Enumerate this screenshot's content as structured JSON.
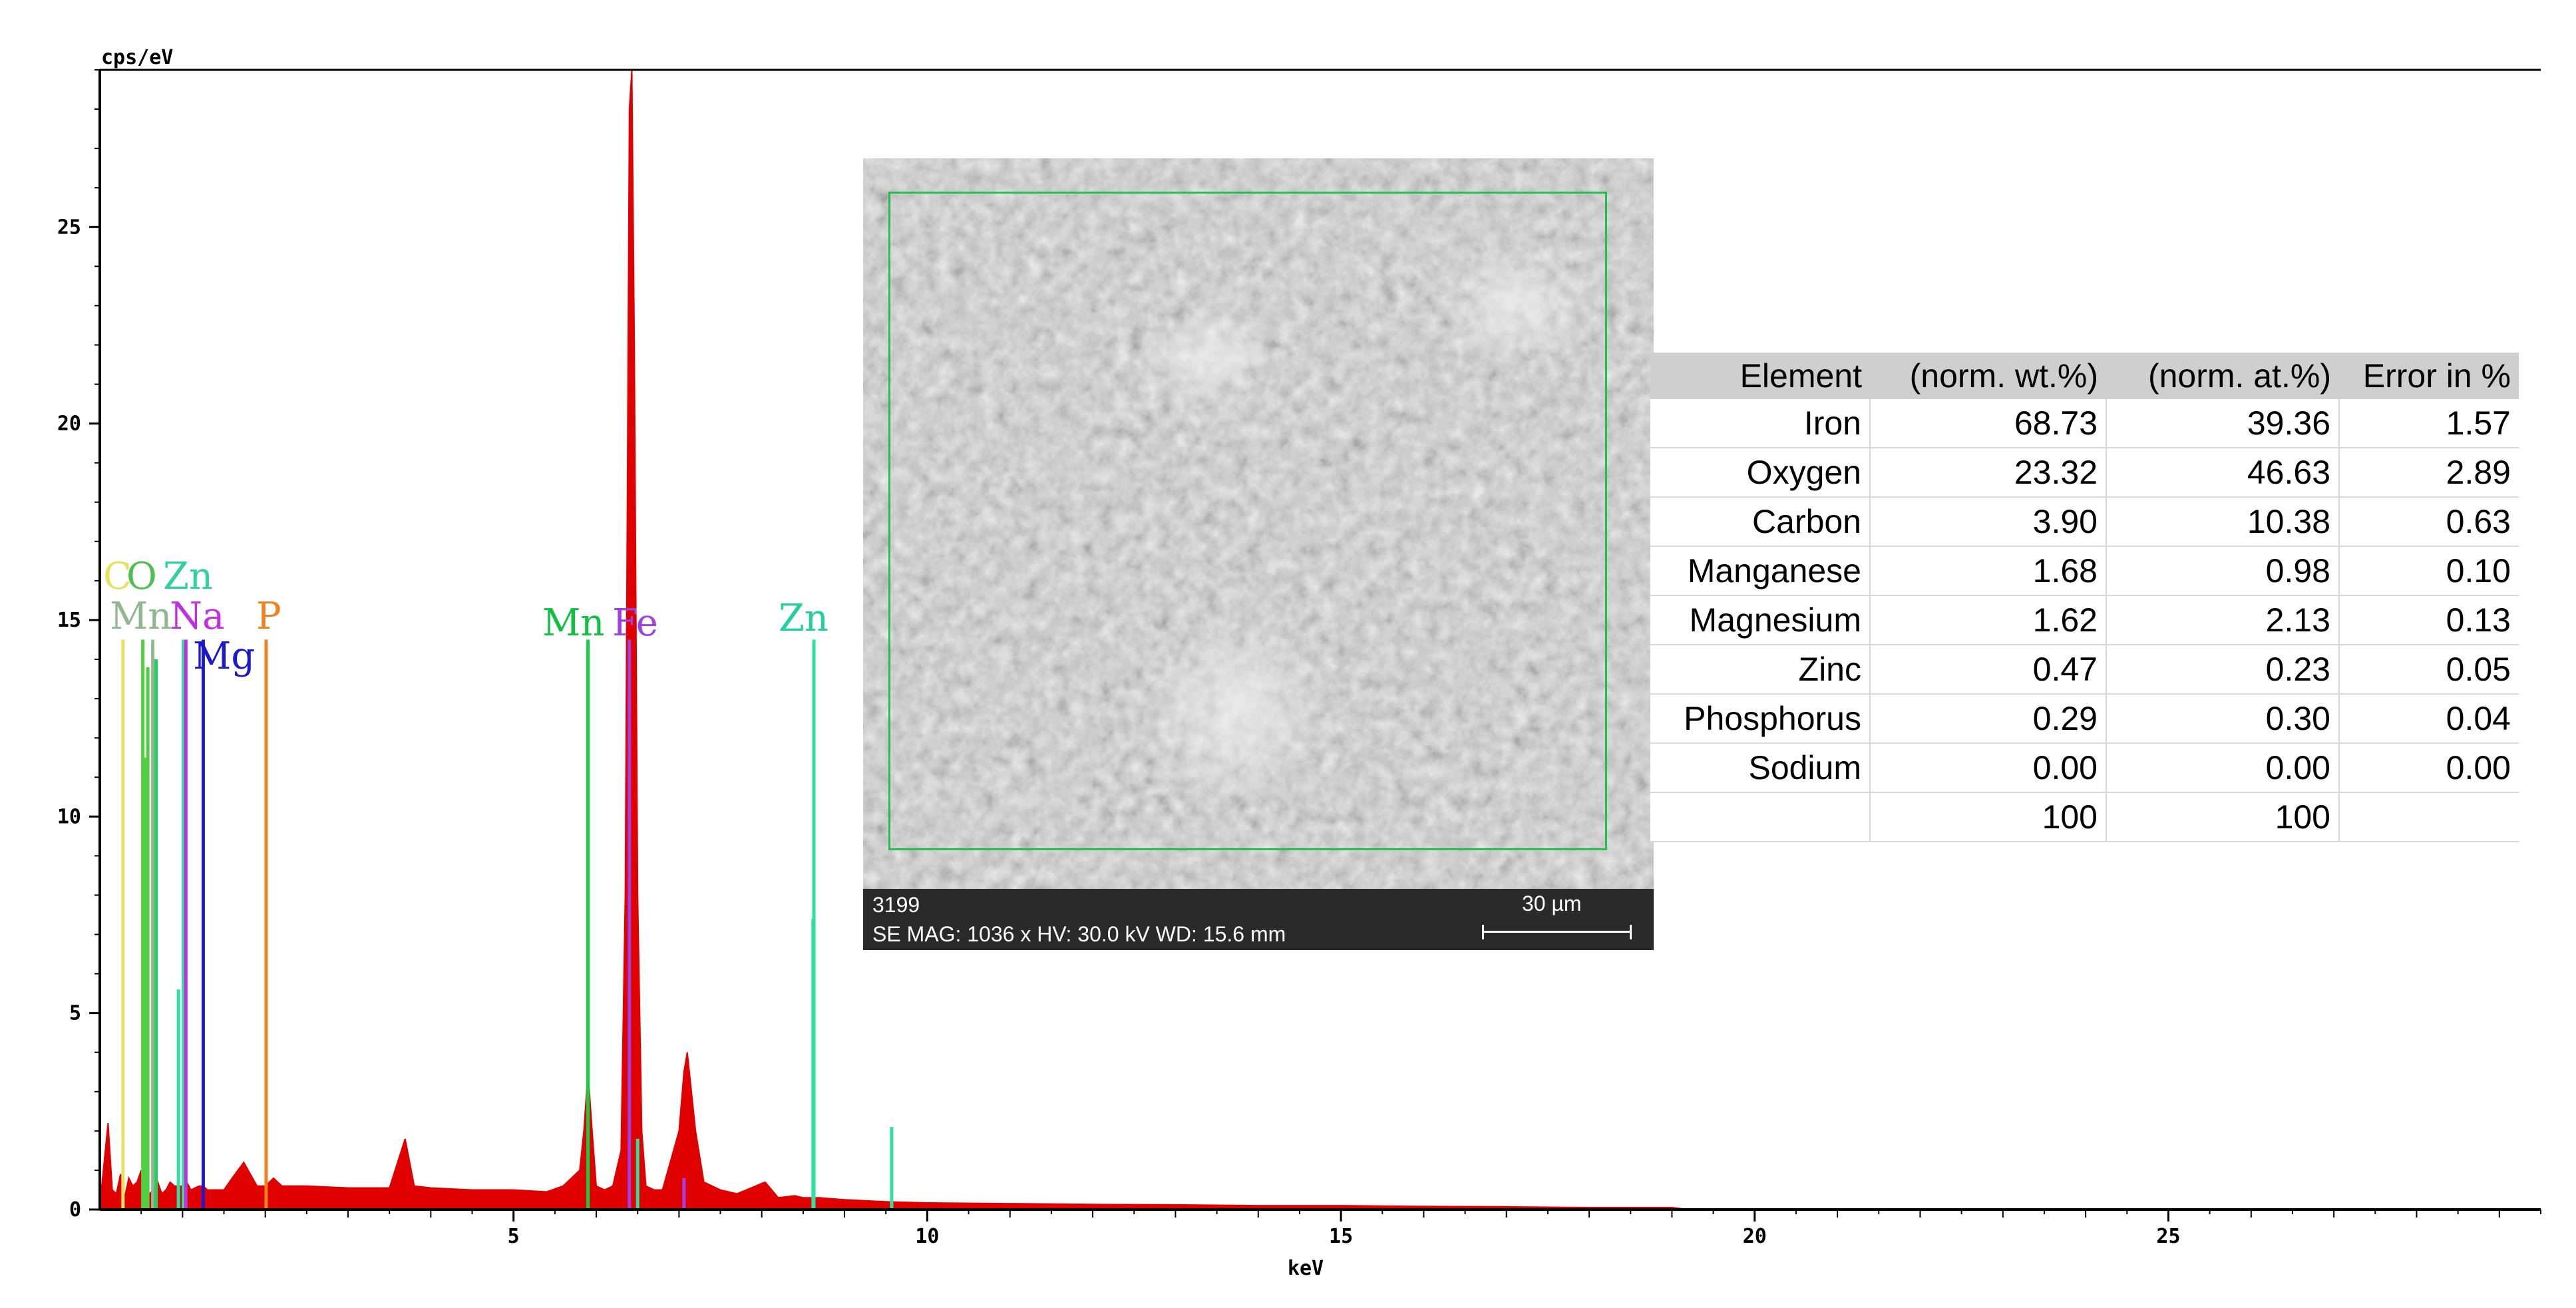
{
  "chart_data": {
    "type": "line",
    "title": "",
    "xlabel": "keV",
    "ylabel": "cps/eV",
    "xlim": [
      0,
      29.5
    ],
    "ylim": [
      0,
      29
    ],
    "x_ticks": [
      5,
      10,
      15,
      20,
      25
    ],
    "y_ticks": [
      0,
      5,
      10,
      15,
      20,
      25
    ],
    "grid": false,
    "spectrum_color": "#e00000",
    "spectrum": {
      "x": [
        0.0,
        0.1,
        0.15,
        0.2,
        0.25,
        0.3,
        0.35,
        0.4,
        0.45,
        0.5,
        0.53,
        0.55,
        0.6,
        0.65,
        0.7,
        0.75,
        0.8,
        0.85,
        0.9,
        1.0,
        1.05,
        1.1,
        1.2,
        1.25,
        1.3,
        1.5,
        1.6,
        1.74,
        1.9,
        2.0,
        2.1,
        2.2,
        2.5,
        3.0,
        3.5,
        3.69,
        3.8,
        4.0,
        4.5,
        5.0,
        5.4,
        5.6,
        5.8,
        5.85,
        5.9,
        5.95,
        6.0,
        6.1,
        6.2,
        6.3,
        6.35,
        6.4,
        6.43,
        6.46,
        6.5,
        6.55,
        6.6,
        6.7,
        6.8,
        7.0,
        7.06,
        7.1,
        7.2,
        7.3,
        7.5,
        7.7,
        8.04,
        8.2,
        8.4,
        8.5,
        8.63,
        8.7,
        9.0,
        9.5,
        10.0,
        11.0,
        12.0,
        13.0,
        14.0,
        15.0,
        16.0,
        17.0,
        18.0,
        19.0,
        19.2
      ],
      "y": [
        0.1,
        2.2,
        0.5,
        0.4,
        0.9,
        0.3,
        0.8,
        0.6,
        0.7,
        1.0,
        0.6,
        0.5,
        0.4,
        0.5,
        0.7,
        0.4,
        0.5,
        0.7,
        0.6,
        0.6,
        0.7,
        0.5,
        0.6,
        0.6,
        0.5,
        0.5,
        0.8,
        1.2,
        0.6,
        0.6,
        0.8,
        0.6,
        0.6,
        0.55,
        0.55,
        1.8,
        0.6,
        0.55,
        0.5,
        0.5,
        0.45,
        0.6,
        1.0,
        2.0,
        3.5,
        2.0,
        0.6,
        0.5,
        0.6,
        1.5,
        8.0,
        28.0,
        29.0,
        22.0,
        8.0,
        2.0,
        0.6,
        0.5,
        0.5,
        2.0,
        3.5,
        4.0,
        2.0,
        0.7,
        0.5,
        0.4,
        0.7,
        0.3,
        0.35,
        0.3,
        0.3,
        0.3,
        0.25,
        0.2,
        0.17,
        0.15,
        0.13,
        0.12,
        0.1,
        0.1,
        0.08,
        0.07,
        0.05,
        0.05,
        0.0
      ]
    },
    "marker_lines": [
      {
        "label": "C",
        "energy": 0.28,
        "height": 14.5,
        "color": "#e8e060"
      },
      {
        "label": "O",
        "energy": 0.52,
        "height": 14.5,
        "color": "#50d040"
      },
      {
        "label": "Zn",
        "energy": 1.01,
        "height": 14.5,
        "color": "#30e0a0"
      },
      {
        "label": "Mn",
        "energy": 0.64,
        "height": 14.5,
        "color": "#90b890"
      },
      {
        "label": "Na",
        "energy": 1.04,
        "height": 14.5,
        "color": "#c030e0"
      },
      {
        "label": "Mg",
        "energy": 1.25,
        "height": 14.5,
        "color": "#1a1acc"
      },
      {
        "label": "P",
        "energy": 2.01,
        "height": 14.5,
        "color": "#f08020"
      },
      {
        "label": "Mn",
        "energy": 5.9,
        "height": 14.5,
        "color": "#10d040"
      },
      {
        "label": "Fe",
        "energy": 6.4,
        "height": 14.5,
        "color": "#a040e0"
      },
      {
        "label": "Zn",
        "energy": 8.63,
        "height": 14.5,
        "color": "#30e0a0"
      }
    ],
    "extra_peaks": [
      {
        "energy": 0.55,
        "height": 11.5,
        "color": "#50d040"
      },
      {
        "energy": 0.58,
        "height": 13.8,
        "color": "#50d040"
      },
      {
        "energy": 0.68,
        "height": 14.0,
        "color": "#20d060"
      },
      {
        "energy": 0.95,
        "height": 5.6,
        "color": "#30e0a0"
      },
      {
        "energy": 8.62,
        "height": 7.4,
        "color": "#30e0a0"
      },
      {
        "energy": 9.57,
        "height": 2.1,
        "color": "#30e0a0"
      },
      {
        "energy": 6.5,
        "height": 1.8,
        "color": "#30e0a0"
      },
      {
        "energy": 7.06,
        "height": 0.8,
        "color": "#a040e0"
      }
    ],
    "labels": [
      {
        "text": "C",
        "color": "#e8e060",
        "row": 1
      },
      {
        "text": "O",
        "color": "#50c050",
        "row": 1
      },
      {
        "text": "Zn",
        "color": "#30d0a0",
        "row": 1
      },
      {
        "text": "Mn",
        "color": "#90b890",
        "row": 2
      },
      {
        "text": "Na",
        "color": "#c030e0",
        "row": 2
      },
      {
        "text": "Mg",
        "color": "#1a1acc",
        "row": 3
      },
      {
        "text": "P",
        "color": "#f08020",
        "row": 2
      },
      {
        "text": "Mn",
        "color": "#10c040",
        "row": 2
      },
      {
        "text": "Fe",
        "color": "#a040e0",
        "row": 2
      },
      {
        "text": "Zn",
        "color": "#20d0a0",
        "row": 2
      }
    ]
  },
  "sem_image": {
    "id_text": "3199",
    "info_text": "SE  MAG: 1036 x  HV: 30.0 kV  WD: 15.6 mm",
    "scale_text": "30 µm"
  },
  "results_table": {
    "headers": [
      "Element",
      "(norm. wt.%)",
      "(norm. at.%)",
      "Error in %"
    ],
    "rows": [
      [
        "Iron",
        "68.73",
        "39.36",
        "1.57"
      ],
      [
        "Oxygen",
        "23.32",
        "46.63",
        "2.89"
      ],
      [
        "Carbon",
        "3.90",
        "10.38",
        "0.63"
      ],
      [
        "Manganese",
        "1.68",
        "0.98",
        "0.10"
      ],
      [
        "Magnesium",
        "1.62",
        "2.13",
        "0.13"
      ],
      [
        "Zinc",
        "0.47",
        "0.23",
        "0.05"
      ],
      [
        "Phosphorus",
        "0.29",
        "0.30",
        "0.04"
      ],
      [
        "Sodium",
        "0.00",
        "0.00",
        "0.00"
      ],
      [
        "",
        "100",
        "100",
        ""
      ]
    ]
  }
}
